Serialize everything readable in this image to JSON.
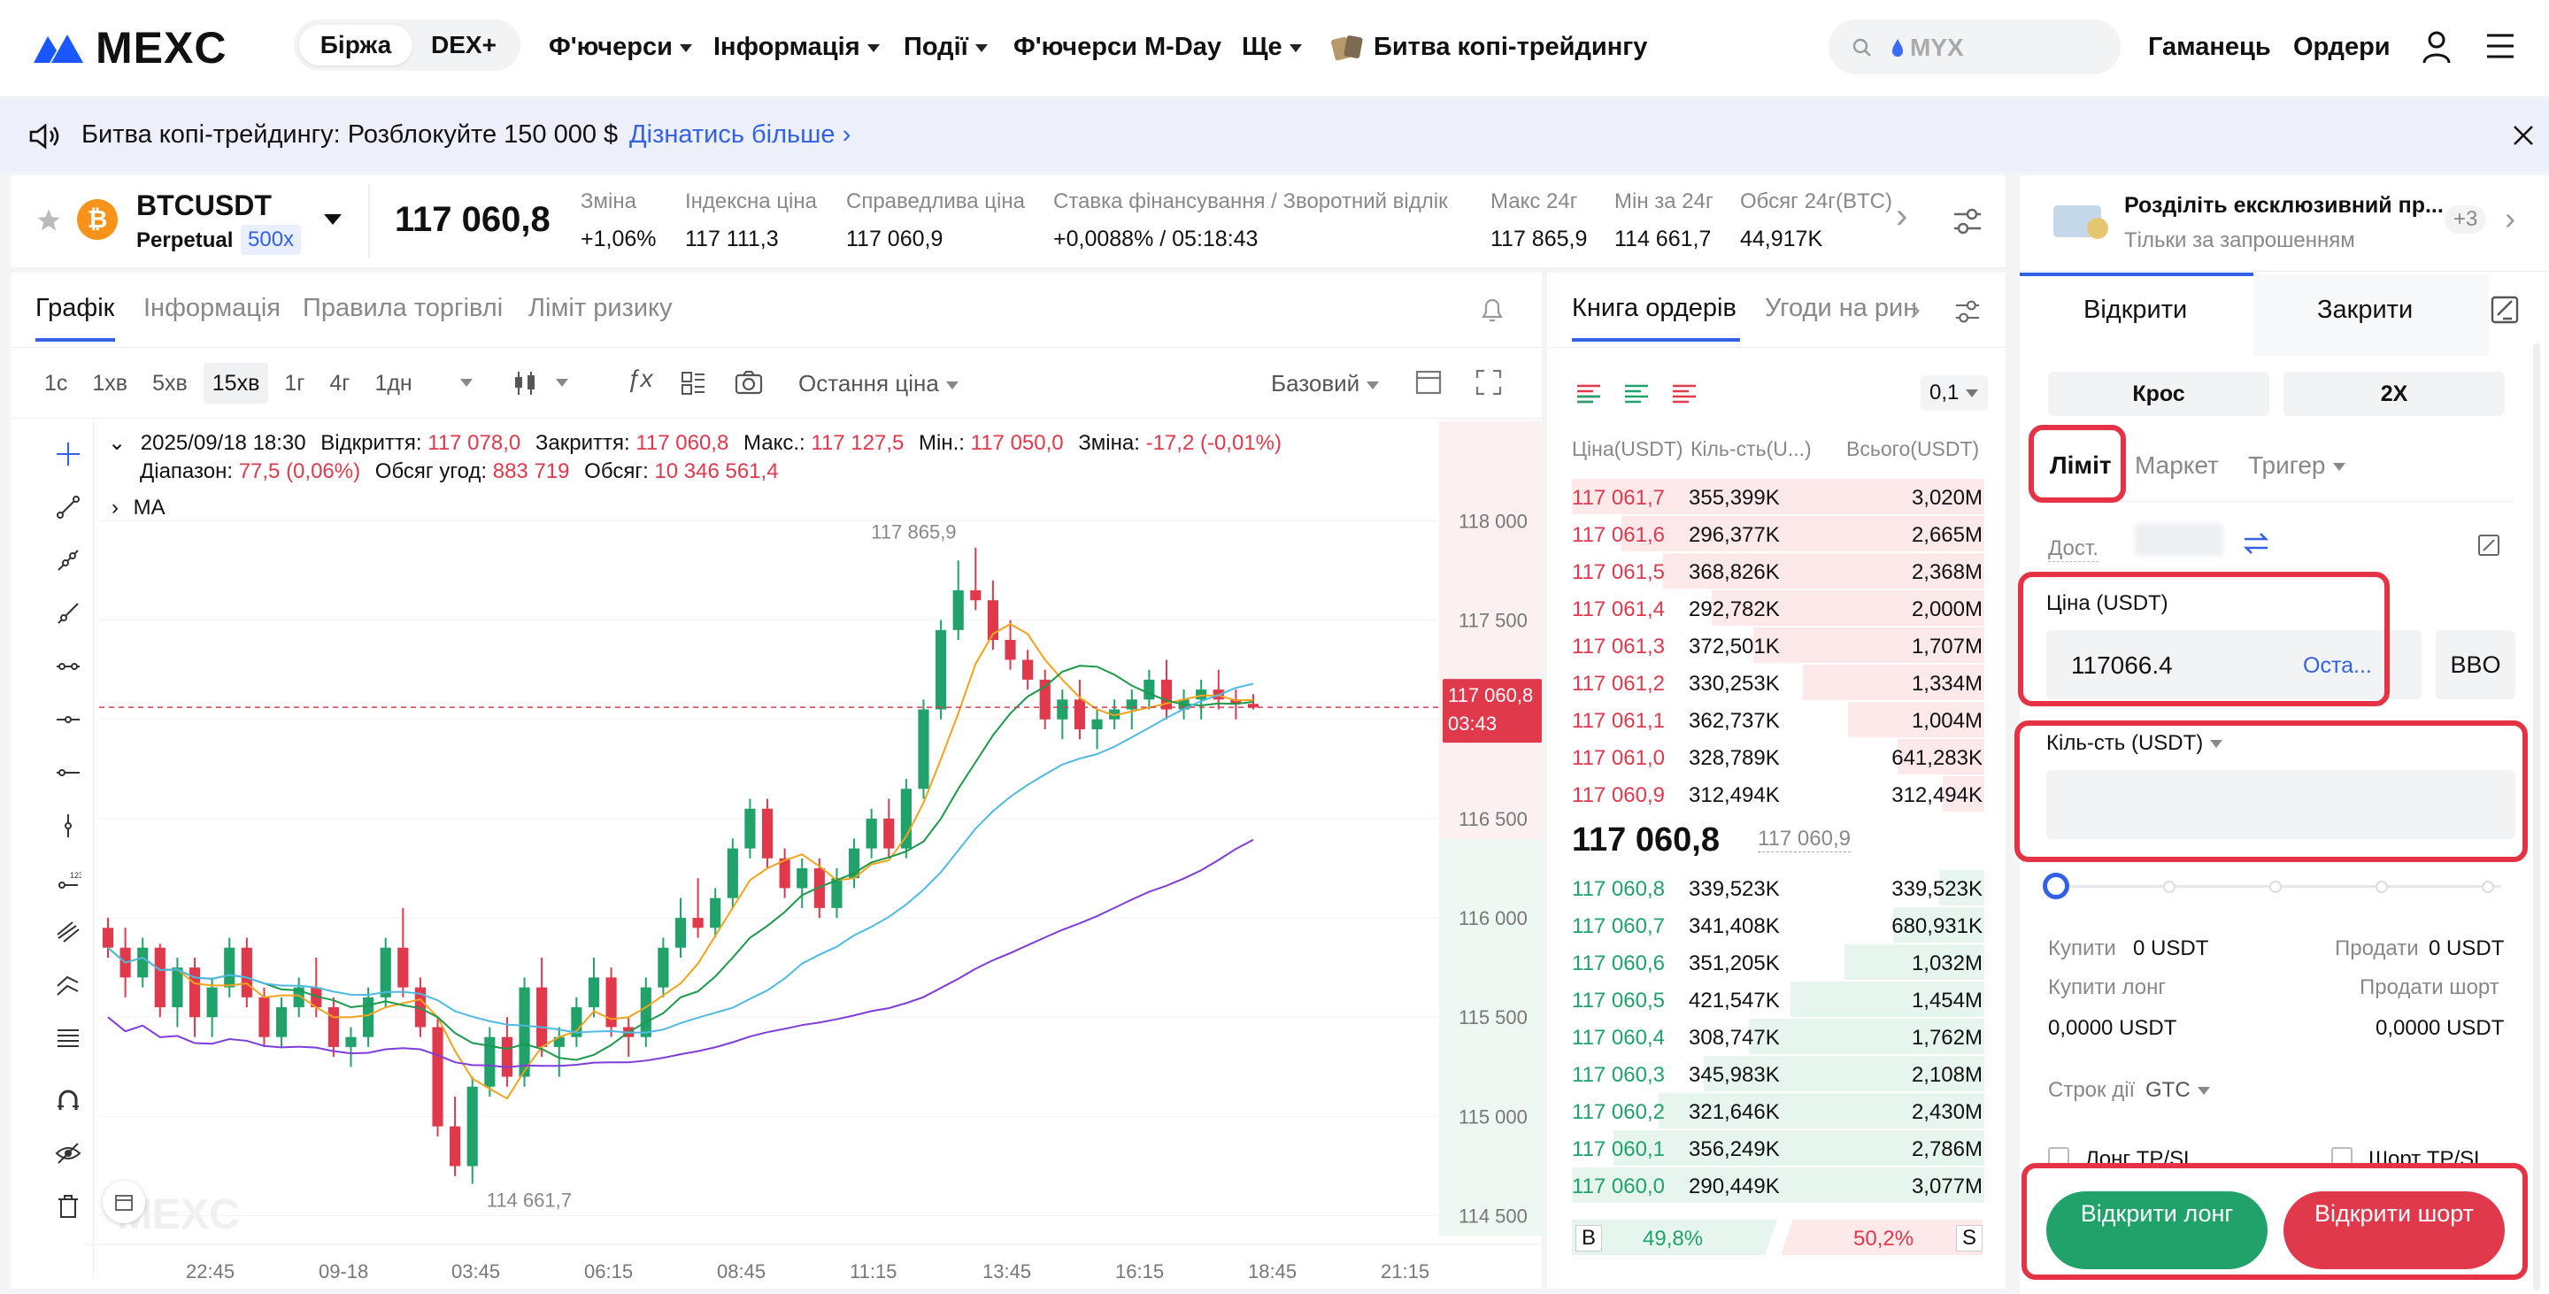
{
  "header": {
    "logo": "MEXC",
    "segments": [
      "Біржа",
      "DEX+"
    ],
    "nav": [
      {
        "label": "Ф'ючерси",
        "caret": true
      },
      {
        "label": "Інформація",
        "caret": true
      },
      {
        "label": "Події",
        "caret": true
      },
      {
        "label": "Ф'ючерси M-Day",
        "caret": false
      },
      {
        "label": "Ще",
        "caret": true
      },
      {
        "label": "Битва копі-трейдингу",
        "caret": false
      }
    ],
    "search_text": "MYX",
    "wallet": "Гаманець",
    "orders": "Ордери"
  },
  "banner": {
    "text": "Битва копі-трейдингу: Розблокуйте 150 000 $",
    "link": "Дізнатись більше"
  },
  "ticker": {
    "symbol": "BTCUSDT",
    "type": "Perpetual",
    "leverage": "500x",
    "price": "117 060,8",
    "stats": [
      {
        "label": "Зміна",
        "value": "+1,06%",
        "color": "green"
      },
      {
        "label": "Індексна ціна",
        "value": "117 111,3"
      },
      {
        "label": "Справедлива ціна",
        "value": "117 060,9"
      },
      {
        "label": "Ставка фінансування / Зворотний відлік",
        "value": "+0,0088% / 05:18:43"
      },
      {
        "label": "Макс 24г",
        "value": "117 865,9"
      },
      {
        "label": "Мін за 24г",
        "value": "114 661,7"
      },
      {
        "label": "Обсяг 24г(BTC)",
        "value": "44,917K"
      }
    ]
  },
  "chart_tabs": [
    "Графік",
    "Інформація",
    "Правила торгівлі",
    "Ліміт ризику"
  ],
  "timeframes": [
    "1с",
    "1хв",
    "5хв",
    "15хв",
    "1г",
    "4г",
    "1дн"
  ],
  "active_timeframe": "15хв",
  "price_type": "Остання ціна",
  "chart_mode": "Базовий",
  "ohlc": {
    "date": "2025/09/18 18:30",
    "open_label": "Відкриття:",
    "open": "117 078,0",
    "close_label": "Закриття:",
    "close": "117 060,8",
    "high_label": "Макс.:",
    "high": "117 127,5",
    "low_label": "Мін.:",
    "low": "117 050,0",
    "change_label": "Зміна:",
    "change": "-17,2 (-0,01%)",
    "range_label": "Діапазон:",
    "range": "77,5 (0,06%)",
    "turnover_label": "Обсяг угод:",
    "turnover": "883 719",
    "volume_label": "Обсяг:",
    "volume": "10 346 561,4",
    "ma_label": "MA"
  },
  "chart_data": {
    "type": "candlestick",
    "y_ticks": [
      "118 000",
      "117 500",
      "117 000",
      "116 500",
      "116 000",
      "115 500",
      "115 000",
      "114 500"
    ],
    "y_tick_values": [
      118000,
      117500,
      117000,
      116500,
      116000,
      115500,
      115000,
      114500
    ],
    "ylim": [
      114400,
      118100
    ],
    "x_ticks": [
      "22:45",
      "09-18",
      "03:45",
      "06:15",
      "08:45",
      "11:15",
      "13:45",
      "16:15",
      "18:45",
      "21:15"
    ],
    "high_marker": "117 865,9",
    "low_marker": "114 661,7",
    "last_price": "117 060,8",
    "countdown": "03:43",
    "candles": [
      [
        115950,
        116000,
        115800,
        115850
      ],
      [
        115850,
        115950,
        115600,
        115700
      ],
      [
        115700,
        115900,
        115650,
        115850
      ],
      [
        115850,
        115870,
        115500,
        115550
      ],
      [
        115550,
        115800,
        115450,
        115750
      ],
      [
        115750,
        115800,
        115400,
        115500
      ],
      [
        115500,
        115700,
        115400,
        115650
      ],
      [
        115650,
        115900,
        115600,
        115850
      ],
      [
        115850,
        115900,
        115550,
        115600
      ],
      [
        115600,
        115650,
        115350,
        115400
      ],
      [
        115400,
        115600,
        115350,
        115550
      ],
      [
        115550,
        115700,
        115500,
        115650
      ],
      [
        115650,
        115800,
        115500,
        115550
      ],
      [
        115550,
        115600,
        115300,
        115350
      ],
      [
        115350,
        115450,
        115250,
        115400
      ],
      [
        115400,
        115650,
        115350,
        115600
      ],
      [
        115600,
        115900,
        115550,
        115850
      ],
      [
        115850,
        116050,
        115600,
        115650
      ],
      [
        115650,
        115700,
        115400,
        115450
      ],
      [
        115450,
        115500,
        114900,
        114950
      ],
      [
        114950,
        115100,
        114700,
        114750
      ],
      [
        114750,
        115200,
        114661,
        115150
      ],
      [
        115150,
        115450,
        115100,
        115400
      ],
      [
        115400,
        115500,
        115150,
        115200
      ],
      [
        115200,
        115700,
        115150,
        115650
      ],
      [
        115650,
        115800,
        115300,
        115350
      ],
      [
        115350,
        115450,
        115200,
        115400
      ],
      [
        115400,
        115600,
        115350,
        115550
      ],
      [
        115550,
        115800,
        115500,
        115700
      ],
      [
        115700,
        115750,
        115400,
        115450
      ],
      [
        115450,
        115500,
        115300,
        115400
      ],
      [
        115400,
        115700,
        115350,
        115650
      ],
      [
        115650,
        115900,
        115600,
        115850
      ],
      [
        115850,
        116100,
        115800,
        116000
      ],
      [
        116000,
        116200,
        115900,
        115950
      ],
      [
        115950,
        116150,
        115900,
        116100
      ],
      [
        116100,
        116400,
        116050,
        116350
      ],
      [
        116350,
        116600,
        116300,
        116550
      ],
      [
        116550,
        116600,
        116250,
        116300
      ],
      [
        116300,
        116350,
        116100,
        116150
      ],
      [
        116150,
        116300,
        116050,
        116250
      ],
      [
        116250,
        116300,
        116000,
        116050
      ],
      [
        116050,
        116250,
        116000,
        116200
      ],
      [
        116200,
        116400,
        116150,
        116350
      ],
      [
        116350,
        116550,
        116300,
        116500
      ],
      [
        116500,
        116600,
        116300,
        116350
      ],
      [
        116350,
        116700,
        116300,
        116650
      ],
      [
        116650,
        117100,
        116600,
        117050
      ],
      [
        117050,
        117500,
        117000,
        117450
      ],
      [
        117450,
        117800,
        117400,
        117650
      ],
      [
        117650,
        117865,
        117550,
        117600
      ],
      [
        117600,
        117700,
        117350,
        117400
      ],
      [
        117400,
        117500,
        117250,
        117300
      ],
      [
        117300,
        117350,
        117150,
        117200
      ],
      [
        117200,
        117250,
        116950,
        117000
      ],
      [
        117000,
        117150,
        116900,
        117100
      ],
      [
        117100,
        117200,
        116900,
        116950
      ],
      [
        116950,
        117050,
        116850,
        117000
      ],
      [
        117000,
        117100,
        116950,
        117050
      ],
      [
        117050,
        117150,
        116950,
        117100
      ],
      [
        117100,
        117250,
        117050,
        117200
      ],
      [
        117200,
        117300,
        117000,
        117050
      ],
      [
        117050,
        117150,
        117000,
        117100
      ],
      [
        117100,
        117200,
        117000,
        117150
      ],
      [
        117150,
        117250,
        117050,
        117100
      ],
      [
        117100,
        117150,
        117000,
        117078
      ],
      [
        117078,
        117127,
        117050,
        117060
      ]
    ]
  },
  "orderbook": {
    "tabs": [
      "Книга ордерів",
      "Угоди на ринку"
    ],
    "precision": "0,1",
    "col_price": "Ціна(USDT)",
    "col_qty": "Кіль-сть(U...)",
    "col_total": "Всього(USDT)",
    "asks": [
      {
        "price": "117 061,7",
        "qty": "355,399K",
        "total": "3,020M",
        "depth": 1.0
      },
      {
        "price": "117 061,6",
        "qty": "296,377K",
        "total": "2,665M",
        "depth": 0.88
      },
      {
        "price": "117 061,5",
        "qty": "368,826K",
        "total": "2,368M",
        "depth": 0.78
      },
      {
        "price": "117 061,4",
        "qty": "292,782K",
        "total": "2,000M",
        "depth": 0.66
      },
      {
        "price": "117 061,3",
        "qty": "372,501K",
        "total": "1,707M",
        "depth": 0.56
      },
      {
        "price": "117 061,2",
        "qty": "330,253K",
        "total": "1,334M",
        "depth": 0.44
      },
      {
        "price": "117 061,1",
        "qty": "362,737K",
        "total": "1,004M",
        "depth": 0.33
      },
      {
        "price": "117 061,0",
        "qty": "328,789K",
        "total": "641,283K",
        "depth": 0.21
      },
      {
        "price": "117 060,9",
        "qty": "312,494K",
        "total": "312,494K",
        "depth": 0.1
      }
    ],
    "mid_price": "117 060,8",
    "mid_mark": "117 060,9",
    "bids": [
      {
        "price": "117 060,8",
        "qty": "339,523K",
        "total": "339,523K",
        "depth": 0.11
      },
      {
        "price": "117 060,7",
        "qty": "341,408K",
        "total": "680,931K",
        "depth": 0.22
      },
      {
        "price": "117 060,6",
        "qty": "351,205K",
        "total": "1,032M",
        "depth": 0.34
      },
      {
        "price": "117 060,5",
        "qty": "421,547K",
        "total": "1,454M",
        "depth": 0.47
      },
      {
        "price": "117 060,4",
        "qty": "308,747K",
        "total": "1,762M",
        "depth": 0.57
      },
      {
        "price": "117 060,3",
        "qty": "345,983K",
        "total": "2,108M",
        "depth": 0.68
      },
      {
        "price": "117 060,2",
        "qty": "321,646K",
        "total": "2,430M",
        "depth": 0.79
      },
      {
        "price": "117 060,1",
        "qty": "356,249K",
        "total": "2,786M",
        "depth": 0.9
      },
      {
        "price": "117 060,0",
        "qty": "290,449K",
        "total": "3,077M",
        "depth": 1.0
      }
    ],
    "buy_label": "B",
    "buy_pct": "49,8%",
    "sell_label": "S",
    "sell_pct": "50,2%"
  },
  "order_panel": {
    "promo_title": "Розділіть ексклюзивний пр...",
    "promo_sub": "Тільки за запрошенням",
    "promo_count": "+3",
    "tabs": [
      "Відкрити",
      "Закрити"
    ],
    "margin_mode": "Крос",
    "leverage": "2X",
    "order_types": [
      "Ліміт",
      "Маркет",
      "Тригер"
    ],
    "avail_label": "Дост.",
    "price_label": "Ціна (USDT)",
    "price_value": "117066.4",
    "price_hint": "Оста...",
    "bbo": "BBO",
    "qty_label": "Кіль-сть (USDT)",
    "qty_value": "",
    "buy_label": "Купити",
    "buy_value": "0 USDT",
    "sell_label": "Продати",
    "sell_value": "0 USDT",
    "buy_long_label": "Купити лонг",
    "buy_long_value": "0,0000 USDT",
    "sell_short_label": "Продати шорт",
    "sell_short_value": "0,0000 USDT",
    "tif_label": "Строк дії",
    "tif_value": "GTC",
    "tpsl_long": "Лонг TP/SL",
    "tpsl_short": "Шорт TP/SL",
    "open_long": "Відкрити лонг",
    "open_short": "Відкрити шорт"
  },
  "colors": {
    "green": "#20a26a",
    "red": "#e0394c",
    "accent": "#3261e8",
    "highlight": "#e53244"
  }
}
